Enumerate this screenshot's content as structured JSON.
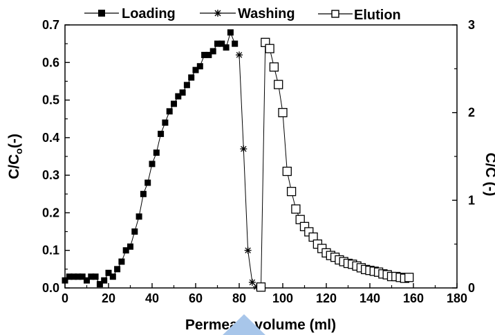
{
  "chart_data": {
    "type": "scatter",
    "xlabel": "Permeate volume (ml)",
    "ylabel_left": {
      "base": "C/C",
      "sub": "o",
      "suffix": "(-)"
    },
    "ylabel_right": "C/C (-)",
    "xlim": [
      0,
      180
    ],
    "xticks": [
      0,
      20,
      40,
      60,
      80,
      100,
      120,
      140,
      160,
      180
    ],
    "ylim_left": [
      0,
      0.7
    ],
    "yticks_left": [
      "0.0",
      "0.1",
      "0.2",
      "0.3",
      "0.4",
      "0.5",
      "0.6",
      "0.7"
    ],
    "ylim_right": [
      0,
      3
    ],
    "yticks_right": [
      "0",
      "1",
      "2",
      "3"
    ],
    "legend": {
      "placement": "top"
    },
    "series": [
      {
        "name": "Loading",
        "axis": "left",
        "marker": "filled-square",
        "x": [
          0,
          2,
          4,
          6,
          8,
          10,
          12,
          14,
          16,
          18,
          20,
          22,
          24,
          26,
          28,
          30,
          32,
          34,
          36,
          38,
          40,
          42,
          44,
          46,
          48,
          50,
          52,
          54,
          56,
          58,
          60,
          62,
          64,
          66,
          68,
          70,
          72,
          74,
          76,
          78
        ],
        "y": [
          0.02,
          0.03,
          0.03,
          0.03,
          0.03,
          0.02,
          0.03,
          0.03,
          0.01,
          0.02,
          0.04,
          0.03,
          0.05,
          0.07,
          0.1,
          0.11,
          0.15,
          0.19,
          0.25,
          0.28,
          0.33,
          0.36,
          0.41,
          0.44,
          0.47,
          0.49,
          0.51,
          0.52,
          0.54,
          0.56,
          0.58,
          0.59,
          0.62,
          0.62,
          0.63,
          0.65,
          0.65,
          0.64,
          0.68,
          0.65
        ]
      },
      {
        "name": "Washing",
        "axis": "left",
        "marker": "asterisk",
        "x": [
          80,
          82,
          84,
          86,
          88,
          90
        ],
        "y": [
          0.62,
          0.37,
          0.1,
          0.015,
          0.003,
          0.0
        ]
      },
      {
        "name": "Elution",
        "axis": "right",
        "marker": "open-square",
        "x": [
          90,
          92,
          94,
          96,
          98,
          100,
          102,
          104,
          106,
          108,
          110,
          112,
          114,
          116,
          118,
          120,
          122,
          124,
          126,
          128,
          130,
          132,
          134,
          136,
          138,
          140,
          142,
          144,
          146,
          148,
          150,
          152,
          154,
          156,
          158
        ],
        "y": [
          0.01,
          2.8,
          2.73,
          2.52,
          2.32,
          2.0,
          1.33,
          1.1,
          0.9,
          0.78,
          0.7,
          0.64,
          0.58,
          0.5,
          0.45,
          0.4,
          0.37,
          0.35,
          0.32,
          0.3,
          0.28,
          0.27,
          0.25,
          0.23,
          0.21,
          0.2,
          0.19,
          0.18,
          0.16,
          0.15,
          0.13,
          0.13,
          0.12,
          0.11,
          0.12
        ]
      }
    ]
  }
}
